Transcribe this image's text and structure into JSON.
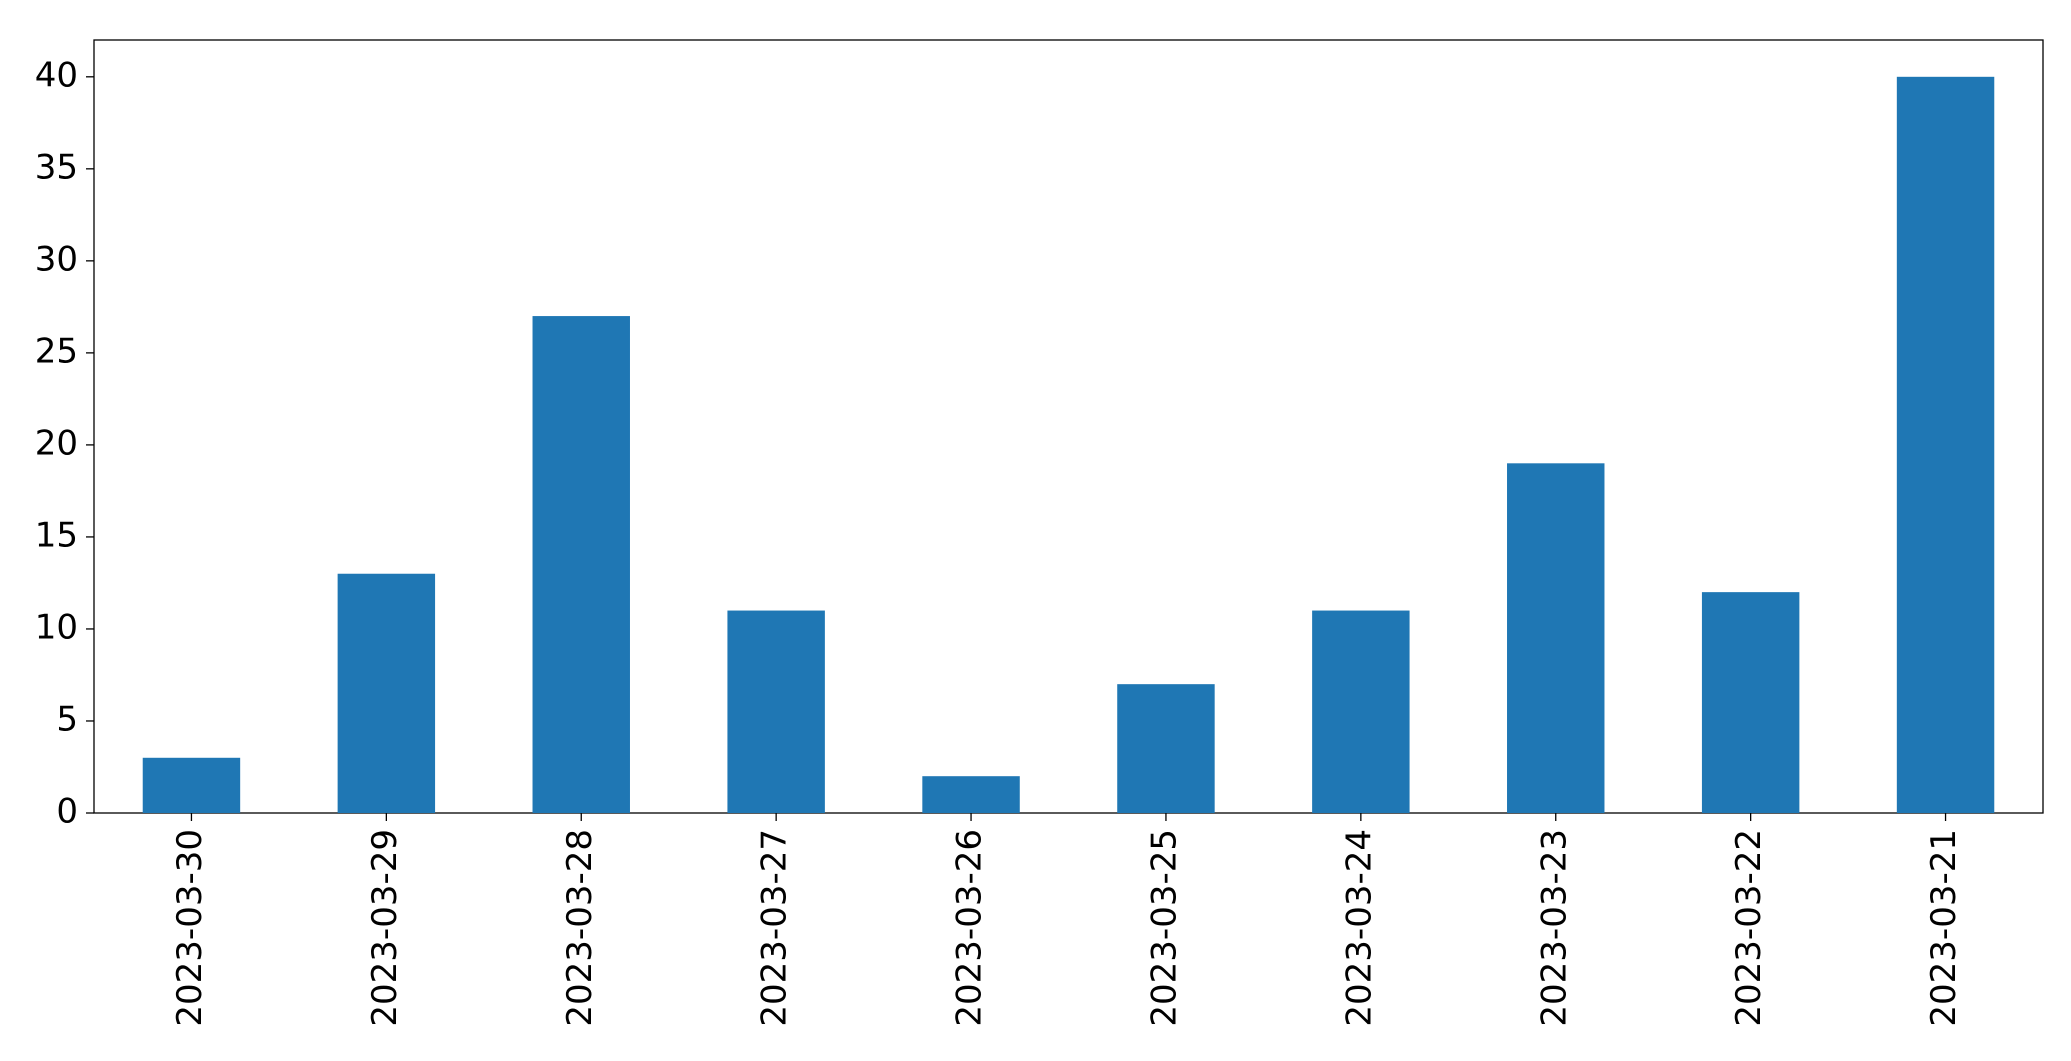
{
  "chart_data": {
    "type": "bar",
    "categories": [
      "2023-03-30",
      "2023-03-29",
      "2023-03-28",
      "2023-03-27",
      "2023-03-26",
      "2023-03-25",
      "2023-03-24",
      "2023-03-23",
      "2023-03-22",
      "2023-03-21"
    ],
    "values": [
      3,
      13,
      27,
      11,
      2,
      7,
      11,
      19,
      12,
      40
    ],
    "color": "#1f77b4",
    "ylim": [
      0,
      42
    ],
    "yticks": [
      0,
      5,
      10,
      15,
      20,
      25,
      30,
      35,
      40
    ],
    "grid": false
  }
}
